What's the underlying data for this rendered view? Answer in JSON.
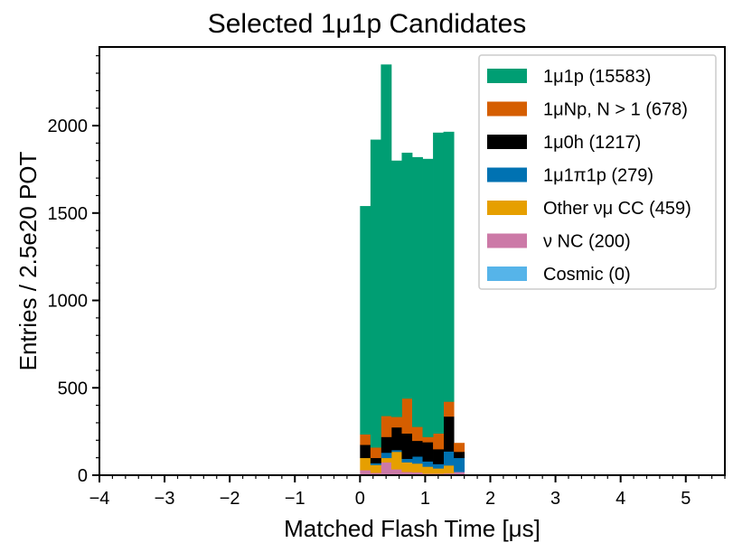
{
  "chart_data": {
    "type": "bar",
    "stacked": true,
    "histogram": true,
    "title": "Selected 1μ1p Candidates",
    "xlabel": "Matched Flash Time [μs]",
    "ylabel": "Entries / 2.5e20 POT",
    "xlim": [
      -4,
      5.6
    ],
    "ylim": [
      0,
      2450
    ],
    "xticks": [
      -4,
      -3,
      -2,
      -1,
      0,
      1,
      2,
      3,
      4,
      5
    ],
    "xtick_labels": [
      "−4",
      "−3",
      "−2",
      "−1",
      "0",
      "1",
      "2",
      "3",
      "4",
      "5"
    ],
    "yticks": [
      0,
      500,
      1000,
      1500,
      2000
    ],
    "ytick_labels": [
      "0",
      "500",
      "1000",
      "1500",
      "2000"
    ],
    "grid": false,
    "legend_position": "top-right",
    "bin_edges": [
      0.0,
      0.16,
      0.32,
      0.48,
      0.64,
      0.8,
      0.96,
      1.12,
      1.28,
      1.44,
      1.6
    ],
    "series": [
      {
        "name": "ν NC (200)",
        "color": "#CC79A7",
        "values": [
          30,
          15,
          75,
          35,
          20,
          18,
          10,
          10,
          12,
          20
        ]
      },
      {
        "name": "Other νμ CC (459)",
        "color": "#E69F00",
        "values": [
          70,
          45,
          25,
          100,
          55,
          50,
          40,
          30,
          45,
          0
        ]
      },
      {
        "name": "1μ1π1p (279)",
        "color": "#0072B2",
        "values": [
          0,
          10,
          30,
          10,
          20,
          40,
          30,
          25,
          80,
          80
        ]
      },
      {
        "name": "1μ0h (1217)",
        "color": "#000000",
        "values": [
          75,
          30,
          90,
          130,
          145,
          90,
          110,
          85,
          200,
          35
        ]
      },
      {
        "name": "1μNp, N > 1 (678)",
        "color": "#D55E00",
        "values": [
          60,
          60,
          120,
          60,
          200,
          80,
          30,
          90,
          85,
          50
        ]
      },
      {
        "name": "1μ1p (15583)",
        "color": "#009E73",
        "values": [
          1305,
          1760,
          2010,
          1465,
          1405,
          1542,
          1590,
          1720,
          1543,
          0
        ]
      },
      {
        "name": "Cosmic (0)",
        "color": "#56B4E9",
        "values": [
          0,
          0,
          0,
          0,
          0,
          0,
          0,
          0,
          0,
          0
        ]
      }
    ],
    "legend": [
      {
        "label": "1μ1p (15583)",
        "color": "#009E73"
      },
      {
        "label": "1μNp, N > 1 (678)",
        "color": "#D55E00"
      },
      {
        "label": "1μ0h (1217)",
        "color": "#000000"
      },
      {
        "label": "1μ1π1p (279)",
        "color": "#0072B2"
      },
      {
        "label": "Other νμ CC (459)",
        "color": "#E69F00"
      },
      {
        "label": "ν NC (200)",
        "color": "#CC79A7"
      },
      {
        "label": "Cosmic (0)",
        "color": "#56B4E9"
      }
    ]
  }
}
